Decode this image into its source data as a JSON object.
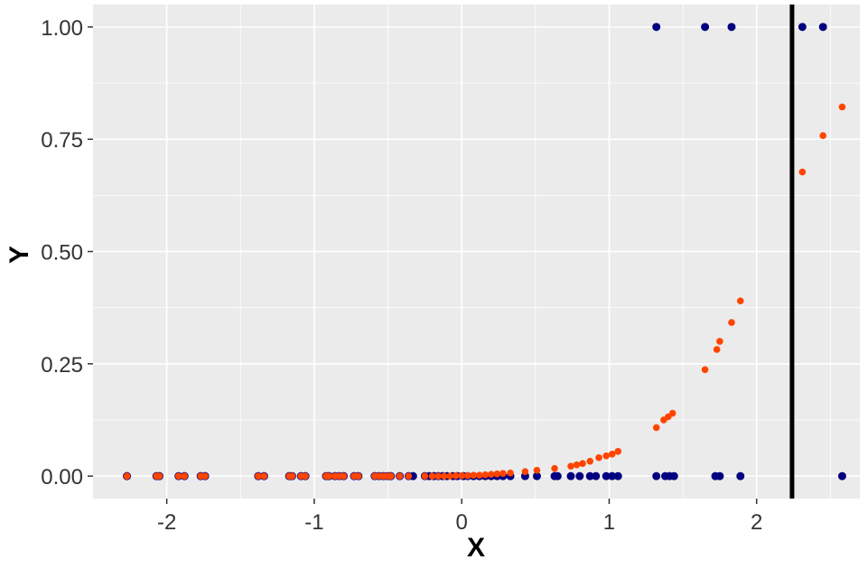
{
  "colors": {
    "panel_background": "#EBEBEB",
    "grid": "#FFFFFF",
    "observed_points": "#000080",
    "fitted_points": "#FF4500",
    "threshold_line": "#000000",
    "tick_text": "#333333"
  },
  "chart_data": {
    "type": "scatter",
    "xlabel": "X",
    "ylabel": "Y",
    "xlim": [
      -2.5,
      2.7
    ],
    "ylim": [
      -0.05,
      1.05
    ],
    "x_ticks": [
      -2,
      -1,
      0,
      1,
      2
    ],
    "x_tick_labels": [
      "-2",
      "-1",
      "0",
      "1",
      "2"
    ],
    "y_ticks": [
      0,
      0.25,
      0.5,
      0.75,
      1
    ],
    "y_tick_labels": [
      "0.00",
      "0.25",
      "0.50",
      "0.75",
      "1.00"
    ],
    "grid": true,
    "legend": "none",
    "vline": {
      "x": 2.24,
      "color": "#000000"
    },
    "series": [
      {
        "color": "#000080",
        "marker": "circle",
        "points": [
          [
            -2.27,
            0
          ],
          [
            -2.07,
            0
          ],
          [
            -2.05,
            0
          ],
          [
            -1.92,
            0
          ],
          [
            -1.88,
            0
          ],
          [
            -1.77,
            0
          ],
          [
            -1.74,
            0
          ],
          [
            -1.38,
            0
          ],
          [
            -1.34,
            0
          ],
          [
            -1.17,
            0
          ],
          [
            -1.15,
            0
          ],
          [
            -1.09,
            0
          ],
          [
            -1.06,
            0
          ],
          [
            -0.92,
            0
          ],
          [
            -0.9,
            0
          ],
          [
            -0.86,
            0
          ],
          [
            -0.83,
            0
          ],
          [
            -0.8,
            0
          ],
          [
            -0.73,
            0
          ],
          [
            -0.7,
            0
          ],
          [
            -0.59,
            0
          ],
          [
            -0.56,
            0
          ],
          [
            -0.53,
            0
          ],
          [
            -0.5,
            0
          ],
          [
            -0.48,
            0
          ],
          [
            -0.42,
            0
          ],
          [
            -0.36,
            0
          ],
          [
            -0.33,
            0
          ],
          [
            -0.25,
            0
          ],
          [
            -0.22,
            0
          ],
          [
            -0.19,
            0
          ],
          [
            -0.16,
            0
          ],
          [
            -0.13,
            0
          ],
          [
            -0.1,
            0
          ],
          [
            -0.06,
            0
          ],
          [
            -0.03,
            0
          ],
          [
            0.01,
            0
          ],
          [
            0.04,
            0
          ],
          [
            0.08,
            0
          ],
          [
            0.12,
            0
          ],
          [
            0.16,
            0
          ],
          [
            0.2,
            0
          ],
          [
            0.24,
            0
          ],
          [
            0.28,
            0
          ],
          [
            0.33,
            0
          ],
          [
            0.43,
            0
          ],
          [
            0.51,
            0
          ],
          [
            0.63,
            0
          ],
          [
            0.65,
            0
          ],
          [
            0.74,
            0
          ],
          [
            0.8,
            0
          ],
          [
            0.87,
            0
          ],
          [
            0.91,
            0
          ],
          [
            0.98,
            0
          ],
          [
            1.02,
            0
          ],
          [
            1.06,
            0
          ],
          [
            1.32,
            0
          ],
          [
            1.38,
            0
          ],
          [
            1.41,
            0
          ],
          [
            1.44,
            0
          ],
          [
            1.72,
            0
          ],
          [
            1.75,
            0
          ],
          [
            1.89,
            0
          ],
          [
            2.58,
            0
          ],
          [
            1.32,
            1
          ],
          [
            1.65,
            1
          ],
          [
            1.83,
            1
          ],
          [
            2.31,
            1
          ],
          [
            2.45,
            1
          ]
        ]
      },
      {
        "color": "#FF4500",
        "marker": "circle",
        "points": [
          [
            -2.27,
            0.0
          ],
          [
            -2.07,
            0.0
          ],
          [
            -2.05,
            0.0
          ],
          [
            -1.92,
            0.0
          ],
          [
            -1.88,
            0.0
          ],
          [
            -1.77,
            0.0
          ],
          [
            -1.74,
            0.0
          ],
          [
            -1.38,
            0.0
          ],
          [
            -1.34,
            0.0
          ],
          [
            -1.17,
            0.0
          ],
          [
            -1.15,
            0.0
          ],
          [
            -1.09,
            0.0
          ],
          [
            -1.06,
            0.0
          ],
          [
            -0.92,
            0.0
          ],
          [
            -0.9,
            0.0
          ],
          [
            -0.86,
            0.0
          ],
          [
            -0.83,
            0.0
          ],
          [
            -0.8,
            0.0
          ],
          [
            -0.73,
            0.0
          ],
          [
            -0.7,
            0.0
          ],
          [
            -0.59,
            0.0
          ],
          [
            -0.56,
            0.0
          ],
          [
            -0.53,
            0.0
          ],
          [
            -0.5,
            0.0
          ],
          [
            -0.48,
            0.0
          ],
          [
            -0.42,
            0.0
          ],
          [
            -0.36,
            0.0
          ],
          [
            -0.25,
            0.0
          ],
          [
            -0.2,
            0.0
          ],
          [
            -0.16,
            0.0
          ],
          [
            -0.12,
            0.0
          ],
          [
            -0.08,
            0.0
          ],
          [
            -0.04,
            0.001
          ],
          [
            0.0,
            0.001
          ],
          [
            0.04,
            0.001
          ],
          [
            0.08,
            0.002
          ],
          [
            0.12,
            0.002
          ],
          [
            0.16,
            0.003
          ],
          [
            0.2,
            0.004
          ],
          [
            0.24,
            0.005
          ],
          [
            0.28,
            0.006
          ],
          [
            0.33,
            0.007
          ],
          [
            0.43,
            0.01
          ],
          [
            0.51,
            0.013
          ],
          [
            0.63,
            0.017
          ],
          [
            0.74,
            0.022
          ],
          [
            0.78,
            0.025
          ],
          [
            0.82,
            0.028
          ],
          [
            0.87,
            0.033
          ],
          [
            0.93,
            0.041
          ],
          [
            0.98,
            0.045
          ],
          [
            1.02,
            0.049
          ],
          [
            1.06,
            0.055
          ],
          [
            1.32,
            0.108
          ],
          [
            1.37,
            0.125
          ],
          [
            1.4,
            0.132
          ],
          [
            1.43,
            0.14
          ],
          [
            1.65,
            0.237
          ],
          [
            1.73,
            0.282
          ],
          [
            1.75,
            0.3
          ],
          [
            1.83,
            0.342
          ],
          [
            1.89,
            0.39
          ],
          [
            2.31,
            0.677
          ],
          [
            2.45,
            0.758
          ],
          [
            2.58,
            0.822
          ]
        ]
      }
    ]
  }
}
